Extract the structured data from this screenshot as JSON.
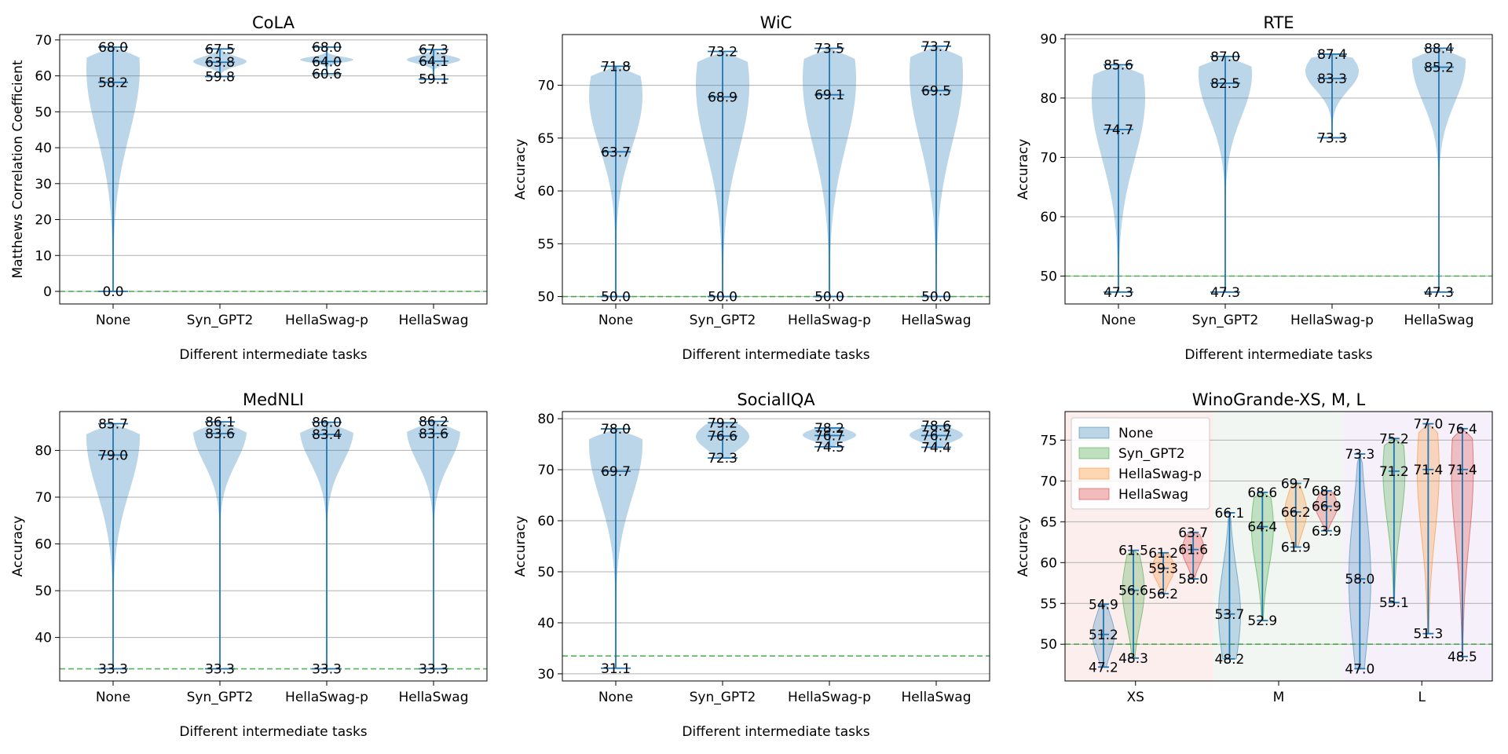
{
  "figure": {
    "xlabel_common": "Different intermediate tasks"
  },
  "colors": {
    "violin": "#1f77b4",
    "syn": "#2ca02c",
    "hellap": "#ff7f0e",
    "hella": "#d62728",
    "baseline": "#2ca02c",
    "bg_xs": "#fdeeee",
    "bg_m": "#f1f6f3",
    "bg_l": "#f5f0f9"
  },
  "chart_data": [
    {
      "type": "violin",
      "title": "CoLA",
      "xlabel": "Different intermediate tasks",
      "ylabel": "Matthews Correlation Coefficient",
      "ylim": [
        -3.5,
        71.5
      ],
      "yticks": [
        0,
        10,
        20,
        30,
        40,
        50,
        60,
        70
      ],
      "baseline": 0,
      "categories": [
        "None",
        "Syn_GPT2",
        "HellaSwag-p",
        "HellaSwag"
      ],
      "series": [
        {
          "name": "None",
          "min": 0.0,
          "median": 58.2,
          "max": 68.0,
          "labels": [
            "68.0",
            "58.2",
            "0.0"
          ],
          "mode": 62,
          "spread": 0.3
        },
        {
          "name": "Syn_GPT2",
          "min": 59.8,
          "median": 63.8,
          "max": 67.5,
          "labels": [
            "67.5",
            "63.8",
            "59.8"
          ],
          "mode": 64,
          "spread": 0.2
        },
        {
          "name": "HellaSwag-p",
          "min": 60.6,
          "median": 64.0,
          "max": 68.0,
          "labels": [
            "68.0",
            "64.0",
            "60.6"
          ],
          "mode": 64.5,
          "spread": 0.12
        },
        {
          "name": "HellaSwag",
          "min": 59.1,
          "median": 64.1,
          "max": 67.3,
          "labels": [
            "67.3",
            "64.1",
            "59.1"
          ],
          "mode": 64.5,
          "spread": 0.15
        }
      ]
    },
    {
      "type": "violin",
      "title": "WiC",
      "xlabel": "Different intermediate tasks",
      "ylabel": "Accuracy",
      "ylim": [
        49.3,
        74.8
      ],
      "yticks": [
        50,
        55,
        60,
        65,
        70
      ],
      "baseline": 50,
      "categories": [
        "None",
        "Syn_GPT2",
        "HellaSwag-p",
        "HellaSwag"
      ],
      "series": [
        {
          "name": "None",
          "min": 50.0,
          "median": 63.7,
          "max": 71.8,
          "labels": [
            "71.8",
            "63.7",
            "50.0"
          ],
          "mode": 69,
          "spread": 0.25
        },
        {
          "name": "Syn_GPT2",
          "min": 50.0,
          "median": 68.9,
          "max": 73.2,
          "labels": [
            "73.2",
            "68.9",
            "50.0"
          ],
          "mode": 70,
          "spread": 0.3
        },
        {
          "name": "HellaSwag-p",
          "min": 50.0,
          "median": 69.1,
          "max": 73.5,
          "labels": [
            "73.5",
            "69.1",
            "50.0"
          ],
          "mode": 70.5,
          "spread": 0.3
        },
        {
          "name": "HellaSwag",
          "min": 50.0,
          "median": 69.5,
          "max": 73.7,
          "labels": [
            "73.7",
            "69.5",
            "50.0"
          ],
          "mode": 71,
          "spread": 0.3
        }
      ]
    },
    {
      "type": "violin",
      "title": "RTE",
      "xlabel": "Different intermediate tasks",
      "ylabel": "Accuracy",
      "ylim": [
        45.3,
        90.7
      ],
      "yticks": [
        50,
        60,
        70,
        80,
        90
      ],
      "baseline": 50,
      "categories": [
        "None",
        "Syn_GPT2",
        "HellaSwag-p",
        "HellaSwag"
      ],
      "series": [
        {
          "name": "None",
          "min": 47.3,
          "median": 74.7,
          "max": 85.6,
          "labels": [
            "85.6",
            "74.7",
            "47.3"
          ],
          "mode": 80,
          "spread": 0.3
        },
        {
          "name": "Syn_GPT2",
          "min": 47.3,
          "median": 82.5,
          "max": 87.0,
          "labels": [
            "87.0",
            "82.5",
            "47.3"
          ],
          "mode": 84,
          "spread": 0.2
        },
        {
          "name": "HellaSwag-p",
          "min": 73.3,
          "median": 83.3,
          "max": 87.4,
          "labels": [
            "87.4",
            "83.3",
            "73.3"
          ],
          "mode": 84.5,
          "spread": 0.25
        },
        {
          "name": "HellaSwag",
          "min": 47.3,
          "median": 85.2,
          "max": 88.4,
          "labels": [
            "88.4",
            "85.2",
            "47.3"
          ],
          "mode": 86,
          "spread": 0.18
        }
      ]
    },
    {
      "type": "violin",
      "title": "MedNLI",
      "xlabel": "Different intermediate tasks",
      "ylabel": "Accuracy",
      "ylim": [
        30.7,
        88.3
      ],
      "yticks": [
        40,
        50,
        60,
        70,
        80
      ],
      "baseline": 33.3,
      "categories": [
        "None",
        "Syn_GPT2",
        "HellaSwag-p",
        "HellaSwag"
      ],
      "series": [
        {
          "name": "None",
          "min": 33.3,
          "median": 79.0,
          "max": 85.7,
          "labels": [
            "85.7",
            "79.0",
            "33.3"
          ],
          "mode": 83,
          "spread": 0.25
        },
        {
          "name": "Syn_GPT2",
          "min": 33.3,
          "median": 83.6,
          "max": 86.1,
          "labels": [
            "86.1",
            "83.6",
            "33.3"
          ],
          "mode": 84.5,
          "spread": 0.15
        },
        {
          "name": "HellaSwag-p",
          "min": 33.3,
          "median": 83.4,
          "max": 86.0,
          "labels": [
            "86.0",
            "83.4",
            "33.3"
          ],
          "mode": 84.5,
          "spread": 0.15
        },
        {
          "name": "HellaSwag",
          "min": 33.3,
          "median": 83.6,
          "max": 86.2,
          "labels": [
            "86.2",
            "83.6",
            "33.3"
          ],
          "mode": 84.5,
          "spread": 0.15
        }
      ]
    },
    {
      "type": "violin",
      "title": "SocialIQA",
      "xlabel": "Different intermediate tasks",
      "ylabel": "Accuracy",
      "ylim": [
        28.6,
        81.4
      ],
      "yticks": [
        30,
        40,
        50,
        60,
        70,
        80
      ],
      "baseline": 33.5,
      "categories": [
        "None",
        "Syn_GPT2",
        "HellaSwag-p",
        "HellaSwag"
      ],
      "series": [
        {
          "name": "None",
          "min": 31.1,
          "median": 69.7,
          "max": 78.0,
          "labels": [
            "78.0",
            "69.7",
            "31.1"
          ],
          "mode": 75,
          "spread": 0.25
        },
        {
          "name": "Syn_GPT2",
          "min": 72.3,
          "median": 76.6,
          "max": 79.2,
          "labels": [
            "79.2",
            "76.6",
            "72.3"
          ],
          "mode": 76.5,
          "spread": 0.4
        },
        {
          "name": "HellaSwag-p",
          "min": 74.5,
          "median": 76.7,
          "max": 78.2,
          "labels": [
            "78.2",
            "76.7",
            "74.5"
          ],
          "mode": 76.8,
          "spread": 0.35
        },
        {
          "name": "HellaSwag",
          "min": 74.4,
          "median": 76.7,
          "max": 78.6,
          "labels": [
            "78.6",
            "76.7",
            "74.4"
          ],
          "mode": 76.8,
          "spread": 0.35
        }
      ]
    },
    {
      "type": "violin",
      "title": "WinoGrande-XS, M, L",
      "xlabel": "",
      "ylabel": "Accuracy",
      "ylim": [
        45.5,
        78.5
      ],
      "yticks": [
        50,
        55,
        60,
        65,
        70,
        75
      ],
      "baseline": 50,
      "categories": [
        "XS",
        "M",
        "L"
      ],
      "legend": [
        "None",
        "Syn_GPT2",
        "HellaSwag-p",
        "HellaSwag"
      ],
      "legend_position": "top-left",
      "groups": [
        {
          "name": "XS",
          "violins": [
            {
              "task": "None",
              "min": 47.2,
              "median": 51.2,
              "max": 54.9,
              "labels": [
                "54.9",
                "51.2",
                "47.2"
              ]
            },
            {
              "task": "Syn_GPT2",
              "min": 48.3,
              "median": 56.6,
              "max": 61.5,
              "labels": [
                "61.5",
                "56.6",
                "48.3"
              ]
            },
            {
              "task": "HellaSwag-p",
              "min": 56.2,
              "median": 59.3,
              "max": 61.2,
              "labels": [
                "61.2",
                "59.3",
                "56.2"
              ]
            },
            {
              "task": "HellaSwag",
              "min": 58.0,
              "median": 61.6,
              "max": 63.7,
              "labels": [
                "63.7",
                "61.6",
                "58.0"
              ]
            }
          ]
        },
        {
          "name": "M",
          "violins": [
            {
              "task": "None",
              "min": 48.2,
              "median": 53.7,
              "max": 66.1,
              "labels": [
                "66.1",
                "53.7",
                "48.2"
              ]
            },
            {
              "task": "Syn_GPT2",
              "min": 52.9,
              "median": 64.4,
              "max": 68.6,
              "labels": [
                "68.6",
                "64.4",
                "52.9"
              ]
            },
            {
              "task": "HellaSwag-p",
              "min": 61.9,
              "median": 66.2,
              "max": 69.7,
              "labels": [
                "69.7",
                "66.2",
                "61.9"
              ]
            },
            {
              "task": "HellaSwag",
              "min": 63.9,
              "median": 66.9,
              "max": 68.8,
              "labels": [
                "68.8",
                "66.9",
                "63.9"
              ]
            }
          ]
        },
        {
          "name": "L",
          "violins": [
            {
              "task": "None",
              "min": 47.0,
              "median": 58.0,
              "max": 73.3,
              "labels": [
                "73.3",
                "58.0",
                "47.0"
              ]
            },
            {
              "task": "Syn_GPT2",
              "min": 55.1,
              "median": 71.2,
              "max": 75.2,
              "labels": [
                "75.2",
                "71.2",
                "55.1"
              ]
            },
            {
              "task": "HellaSwag-p",
              "min": 51.3,
              "median": 71.4,
              "max": 77.0,
              "labels": [
                "77.0",
                "71.4",
                "51.3"
              ]
            },
            {
              "task": "HellaSwag",
              "min": 48.5,
              "median": 71.4,
              "max": 76.4,
              "labels": [
                "76.4",
                "71.4",
                "48.5"
              ]
            }
          ]
        }
      ]
    }
  ]
}
